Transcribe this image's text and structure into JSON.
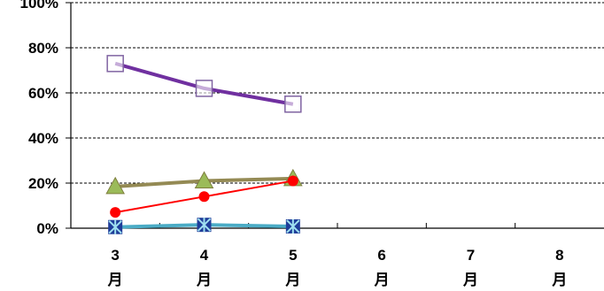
{
  "chart_data": {
    "type": "line",
    "title": "",
    "xlabel": "",
    "ylabel": "",
    "categories": [
      "3月",
      "4月",
      "5月",
      "6月",
      "7月",
      "8月"
    ],
    "ylim": [
      0,
      100
    ],
    "y_ticks": [
      "0%",
      "20%",
      "40%",
      "60%",
      "80%",
      "100%"
    ],
    "grid": true,
    "legend": "none",
    "series": [
      {
        "values": [
          73,
          62,
          55,
          null,
          null,
          null
        ],
        "color": "#7030a0",
        "marker": "square-open",
        "marker_color": "#8064a2"
      },
      {
        "values": [
          18.5,
          21,
          22,
          null,
          null,
          null
        ],
        "color": "#948a54",
        "marker": "triangle",
        "marker_color": "#9bbb59"
      },
      {
        "values": [
          7,
          14,
          21,
          null,
          null,
          null
        ],
        "color": "#ff0000",
        "marker": "circle",
        "marker_color": "#ff0000"
      },
      {
        "values": [
          0.5,
          1.5,
          0.8,
          null,
          null,
          null
        ],
        "color": "#4bacc6",
        "marker": "asterisk-square",
        "marker_color": "#1f3d99"
      }
    ]
  }
}
